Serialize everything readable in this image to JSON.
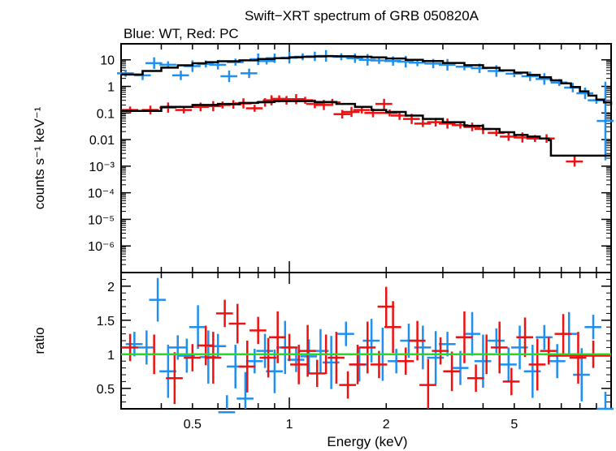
{
  "chart_data": [
    {
      "type": "scatter",
      "title": "Swift−XRT spectrum of GRB 050820A",
      "subtitle": "Blue: WT, Red: PC",
      "xlabel": "",
      "ylabel": "counts s⁻¹ keV⁻¹",
      "xscale": "log",
      "yscale": "log",
      "xlim": [
        0.3,
        10
      ],
      "ylim": [
        1e-07,
        40
      ],
      "y_ticks": [
        "10",
        "1",
        "0.1",
        "0.01",
        "10⁻³",
        "10⁻⁴",
        "10⁻⁵",
        "10⁻⁶"
      ],
      "colors": {
        "wt": "#1f8ff0",
        "pc": "#ee1111",
        "model": "#000000"
      },
      "series": [
        {
          "name": "WT",
          "points": [
            [
              0.31,
              3.1
            ],
            [
              0.35,
              2.6
            ],
            [
              0.38,
              7.5
            ],
            [
              0.42,
              6.5
            ],
            [
              0.46,
              2.6
            ],
            [
              0.5,
              5.8
            ],
            [
              0.55,
              7.0
            ],
            [
              0.6,
              6.5
            ],
            [
              0.65,
              2.4
            ],
            [
              0.68,
              8.2
            ],
            [
              0.75,
              3.1
            ],
            [
              0.8,
              10.5
            ],
            [
              0.85,
              9.0
            ],
            [
              0.9,
              11.5
            ],
            [
              1.0,
              12.0
            ],
            [
              1.1,
              13.0
            ],
            [
              1.2,
              13.5
            ],
            [
              1.3,
              14.0
            ],
            [
              1.45,
              13.0
            ],
            [
              1.6,
              11.5
            ],
            [
              1.75,
              10.0
            ],
            [
              1.9,
              9.5
            ],
            [
              2.1,
              9.0
            ],
            [
              2.3,
              8.5
            ],
            [
              2.5,
              7.8
            ],
            [
              2.8,
              7.2
            ],
            [
              3.1,
              6.5
            ],
            [
              3.5,
              5.5
            ],
            [
              3.9,
              4.8
            ],
            [
              4.4,
              3.8
            ],
            [
              5.0,
              3.0
            ],
            [
              5.6,
              2.4
            ],
            [
              6.2,
              1.9
            ],
            [
              6.9,
              1.4
            ],
            [
              7.6,
              0.9
            ],
            [
              8.3,
              0.55
            ],
            [
              9.0,
              0.3
            ],
            [
              9.6,
              0.05
            ]
          ]
        },
        {
          "name": "PC",
          "points": [
            [
              0.32,
              0.13
            ],
            [
              0.37,
              0.13
            ],
            [
              0.42,
              0.16
            ],
            [
              0.47,
              0.13
            ],
            [
              0.53,
              0.17
            ],
            [
              0.58,
              0.18
            ],
            [
              0.62,
              0.2
            ],
            [
              0.67,
              0.21
            ],
            [
              0.72,
              0.23
            ],
            [
              0.78,
              0.15
            ],
            [
              0.84,
              0.25
            ],
            [
              0.88,
              0.3
            ],
            [
              0.93,
              0.34
            ],
            [
              0.98,
              0.3
            ],
            [
              1.05,
              0.33
            ],
            [
              1.12,
              0.3
            ],
            [
              1.2,
              0.22
            ],
            [
              1.28,
              0.2
            ],
            [
              1.36,
              0.25
            ],
            [
              1.46,
              0.09
            ],
            [
              1.56,
              0.11
            ],
            [
              1.68,
              0.13
            ],
            [
              1.82,
              0.1
            ],
            [
              1.97,
              0.22
            ],
            [
              2.05,
              0.1
            ],
            [
              2.2,
              0.08
            ],
            [
              2.4,
              0.06
            ],
            [
              2.6,
              0.04
            ],
            [
              2.85,
              0.045
            ],
            [
              3.1,
              0.04
            ],
            [
              3.4,
              0.035
            ],
            [
              3.7,
              0.03
            ],
            [
              4.0,
              0.025
            ],
            [
              4.4,
              0.018
            ],
            [
              4.8,
              0.013
            ],
            [
              5.3,
              0.012
            ],
            [
              5.8,
              0.011
            ],
            [
              6.3,
              0.011
            ],
            [
              7.7,
              0.0015
            ]
          ]
        }
      ],
      "model_wt": [
        [
          0.3,
          2.8
        ],
        [
          0.35,
          3.8
        ],
        [
          0.4,
          5.1
        ],
        [
          0.45,
          6.2
        ],
        [
          0.5,
          7.4
        ],
        [
          0.55,
          8.2
        ],
        [
          0.6,
          8.8
        ],
        [
          0.7,
          9.6
        ],
        [
          0.8,
          10.7
        ],
        [
          0.9,
          11.5
        ],
        [
          1.0,
          12.4
        ],
        [
          1.1,
          13.0
        ],
        [
          1.2,
          13.5
        ],
        [
          1.3,
          13.7
        ],
        [
          1.4,
          13.6
        ],
        [
          1.6,
          13.0
        ],
        [
          1.8,
          12.3
        ],
        [
          2.0,
          11.2
        ],
        [
          2.3,
          10.0
        ],
        [
          2.6,
          9.0
        ],
        [
          3.0,
          7.6
        ],
        [
          3.5,
          6.3
        ],
        [
          4.0,
          5.0
        ],
        [
          4.5,
          4.0
        ],
        [
          5.0,
          3.3
        ],
        [
          5.5,
          2.7
        ],
        [
          6.0,
          2.2
        ],
        [
          6.5,
          1.7
        ],
        [
          7.0,
          1.3
        ],
        [
          7.5,
          0.95
        ],
        [
          8.0,
          0.65
        ],
        [
          8.5,
          0.45
        ],
        [
          9.0,
          0.32
        ],
        [
          9.5,
          0.25
        ],
        [
          10.0,
          0.2
        ]
      ],
      "model_pc": [
        [
          0.3,
          0.12
        ],
        [
          0.4,
          0.17
        ],
        [
          0.5,
          0.2
        ],
        [
          0.6,
          0.22
        ],
        [
          0.7,
          0.24
        ],
        [
          0.8,
          0.26
        ],
        [
          0.9,
          0.28
        ],
        [
          1.0,
          0.28
        ],
        [
          1.2,
          0.26
        ],
        [
          1.4,
          0.22
        ],
        [
          1.6,
          0.17
        ],
        [
          1.8,
          0.13
        ],
        [
          2.0,
          0.11
        ],
        [
          2.3,
          0.08
        ],
        [
          2.6,
          0.06
        ],
        [
          3.0,
          0.045
        ],
        [
          3.5,
          0.033
        ],
        [
          4.0,
          0.025
        ],
        [
          4.5,
          0.019
        ],
        [
          5.0,
          0.015
        ],
        [
          5.5,
          0.013
        ],
        [
          6.0,
          0.011
        ],
        [
          6.4,
          0.0095
        ],
        [
          6.5,
          0.0025
        ],
        [
          10.0,
          0.0025
        ]
      ]
    },
    {
      "type": "scatter",
      "title": "",
      "xlabel": "Energy (keV)",
      "ylabel": "ratio",
      "xscale": "log",
      "yscale": "linear",
      "xlim": [
        0.3,
        10
      ],
      "ylim": [
        0.2,
        2.2
      ],
      "x_ticks": [
        "0.5",
        "1",
        "2",
        "5"
      ],
      "y_ticks": [
        "0.5",
        "1",
        "1.5",
        "2"
      ],
      "reference_line": 1,
      "series": [
        {
          "name": "WT",
          "points": [
            [
              0.33,
              1.15
            ],
            [
              0.36,
              1.1
            ],
            [
              0.39,
              1.8
            ],
            [
              0.42,
              0.75
            ],
            [
              0.45,
              1.1
            ],
            [
              0.48,
              0.98
            ],
            [
              0.52,
              1.4
            ],
            [
              0.56,
              0.96
            ],
            [
              0.6,
              1.12
            ],
            [
              0.64,
              0.15
            ],
            [
              0.68,
              0.82
            ],
            [
              0.73,
              0.35
            ],
            [
              0.78,
              0.9
            ],
            [
              0.84,
              1.05
            ],
            [
              0.9,
              0.75
            ],
            [
              0.97,
              1.1
            ],
            [
              1.05,
              0.92
            ],
            [
              1.15,
              0.97
            ],
            [
              1.25,
              1.05
            ],
            [
              1.35,
              0.88
            ],
            [
              1.5,
              1.3
            ],
            [
              1.65,
              0.85
            ],
            [
              1.8,
              1.2
            ],
            [
              1.95,
              1.0
            ],
            [
              2.15,
              0.9
            ],
            [
              2.35,
              1.2
            ],
            [
              2.6,
              1.1
            ],
            [
              2.85,
              0.95
            ],
            [
              3.1,
              1.15
            ],
            [
              3.4,
              0.8
            ],
            [
              3.7,
              1.3
            ],
            [
              4.0,
              0.9
            ],
            [
              4.4,
              1.2
            ],
            [
              4.8,
              0.85
            ],
            [
              5.2,
              1.1
            ],
            [
              5.7,
              0.75
            ],
            [
              6.2,
              1.25
            ],
            [
              6.8,
              0.9
            ],
            [
              7.4,
              1.3
            ],
            [
              8.1,
              0.7
            ],
            [
              8.8,
              1.4
            ],
            [
              9.6,
              0.2
            ]
          ]
        },
        {
          "name": "PC",
          "points": [
            [
              0.32,
              1.1
            ],
            [
              0.38,
              1.0
            ],
            [
              0.44,
              0.65
            ],
            [
              0.5,
              0.95
            ],
            [
              0.55,
              1.13
            ],
            [
              0.58,
              0.95
            ],
            [
              0.63,
              1.6
            ],
            [
              0.69,
              1.45
            ],
            [
              0.74,
              0.82
            ],
            [
              0.8,
              1.35
            ],
            [
              0.86,
              0.95
            ],
            [
              0.92,
              1.25
            ],
            [
              1.0,
              1.1
            ],
            [
              1.07,
              0.85
            ],
            [
              1.14,
              1.05
            ],
            [
              1.22,
              0.72
            ],
            [
              1.3,
              1.0
            ],
            [
              1.4,
              0.95
            ],
            [
              1.52,
              0.55
            ],
            [
              1.63,
              0.85
            ],
            [
              1.75,
              1.1
            ],
            [
              1.9,
              0.85
            ],
            [
              2.0,
              1.7
            ],
            [
              2.1,
              1.4
            ],
            [
              2.3,
              0.9
            ],
            [
              2.5,
              1.2
            ],
            [
              2.7,
              0.55
            ],
            [
              2.95,
              1.05
            ],
            [
              3.2,
              0.75
            ],
            [
              3.5,
              1.25
            ],
            [
              3.8,
              0.65
            ],
            [
              4.1,
              1.0
            ],
            [
              4.5,
              1.1
            ],
            [
              4.9,
              0.6
            ],
            [
              5.4,
              1.25
            ],
            [
              5.9,
              0.85
            ],
            [
              6.4,
              1.05
            ],
            [
              7.1,
              1.3
            ],
            [
              7.9,
              0.95
            ],
            [
              8.8,
              1.0
            ]
          ]
        }
      ]
    }
  ]
}
